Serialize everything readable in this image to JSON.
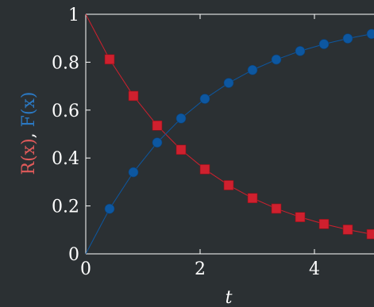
{
  "chart_data": {
    "type": "line",
    "xlabel": "t",
    "ylabel": "R(x), F(x)",
    "ylabel_parts": [
      {
        "text": "R(x)",
        "color": "#e05a5a"
      },
      {
        "text": ", ",
        "color": "#ffffff"
      },
      {
        "text": "F(x)",
        "color": "#2b78c2"
      }
    ],
    "xlim": [
      0,
      5
    ],
    "ylim": [
      0,
      1
    ],
    "xticks": [
      0,
      2,
      4
    ],
    "yticks": [
      0,
      0.2,
      0.4,
      0.6,
      0.8,
      1
    ],
    "xtick_labels": [
      "0",
      "2",
      "4"
    ],
    "ytick_labels": [
      "0",
      "0.2",
      "0.4",
      "0.6",
      "0.8",
      "1"
    ],
    "grid": false,
    "series": [
      {
        "color": "#cf202e",
        "marker": "square",
        "x": [
          0,
          0.4167,
          0.8333,
          1.25,
          1.6667,
          2.0833,
          2.5,
          2.9167,
          3.3333,
          3.75,
          4.1667,
          4.5833,
          5.0
        ],
        "values": [
          1.0,
          0.8119,
          0.6592,
          0.5353,
          0.4346,
          0.3529,
          0.2865,
          0.2326,
          0.1889,
          0.1534,
          0.1245,
          0.1011,
          0.0821
        ]
      },
      {
        "color": "#0d57a0",
        "marker": "circle",
        "x": [
          0,
          0.4167,
          0.8333,
          1.25,
          1.6667,
          2.0833,
          2.5,
          2.9167,
          3.3333,
          3.75,
          4.1667,
          4.5833,
          5.0
        ],
        "values": [
          0.0,
          0.1881,
          0.3408,
          0.4647,
          0.5654,
          0.6471,
          0.7135,
          0.7674,
          0.8111,
          0.8466,
          0.8755,
          0.8989,
          0.9179
        ]
      }
    ]
  }
}
